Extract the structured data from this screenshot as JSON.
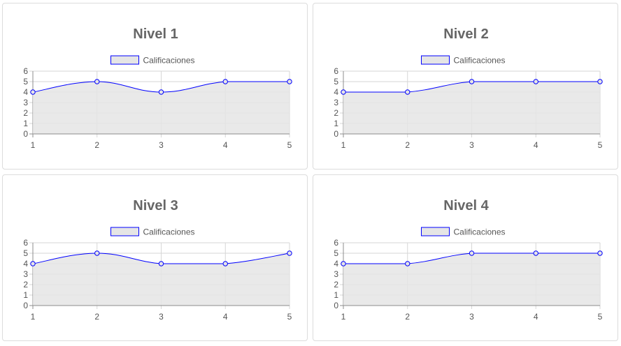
{
  "colors": {
    "line": "#0000ff",
    "fill": "#e5e5e5",
    "grid": "#d6d6d6",
    "axis": "#8c8c8c",
    "title": "#666666"
  },
  "chart_data": [
    {
      "type": "area",
      "title": "Nivel 1",
      "legend_position": "top",
      "grid": true,
      "x": [
        "1",
        "2",
        "3",
        "4",
        "5"
      ],
      "ylim": [
        0,
        6
      ],
      "yticks": [
        "0",
        "1",
        "2",
        "3",
        "4",
        "5",
        "6"
      ],
      "series": [
        {
          "name": "Calificaciones",
          "values": [
            4,
            5,
            4,
            5,
            5
          ]
        }
      ]
    },
    {
      "type": "area",
      "title": "Nivel 2",
      "legend_position": "top",
      "grid": true,
      "x": [
        "1",
        "2",
        "3",
        "4",
        "5"
      ],
      "ylim": [
        0,
        6
      ],
      "yticks": [
        "0",
        "1",
        "2",
        "3",
        "4",
        "5",
        "6"
      ],
      "series": [
        {
          "name": "Calificaciones",
          "values": [
            4,
            4,
            5,
            5,
            5
          ]
        }
      ]
    },
    {
      "type": "area",
      "title": "Nivel 3",
      "legend_position": "top",
      "grid": true,
      "x": [
        "1",
        "2",
        "3",
        "4",
        "5"
      ],
      "ylim": [
        0,
        6
      ],
      "yticks": [
        "0",
        "1",
        "2",
        "3",
        "4",
        "5",
        "6"
      ],
      "series": [
        {
          "name": "Calificaciones",
          "values": [
            4,
            5,
            4,
            4,
            5
          ]
        }
      ]
    },
    {
      "type": "area",
      "title": "Nivel 4",
      "legend_position": "top",
      "grid": true,
      "x": [
        "1",
        "2",
        "3",
        "4",
        "5"
      ],
      "ylim": [
        0,
        6
      ],
      "yticks": [
        "0",
        "1",
        "2",
        "3",
        "4",
        "5",
        "6"
      ],
      "series": [
        {
          "name": "Calificaciones",
          "values": [
            4,
            4,
            5,
            5,
            5
          ]
        }
      ]
    }
  ]
}
